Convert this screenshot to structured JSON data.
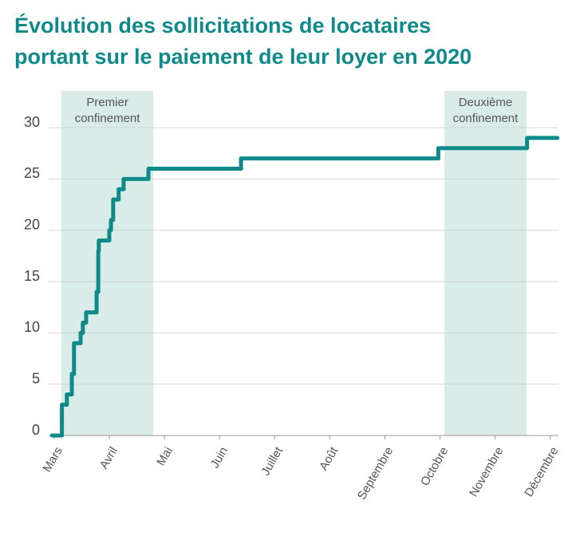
{
  "chart_data": {
    "type": "line",
    "title": [
      "Évolution des sollicitations de locataires",
      "portant sur le paiement de leur loyer en 2020"
    ],
    "step": "post",
    "xlim": [
      -0.1,
      9.15
    ],
    "xticks": [
      {
        "value": 0,
        "label": "Mars"
      },
      {
        "value": 1,
        "label": "Avril"
      },
      {
        "value": 2,
        "label": "Mai"
      },
      {
        "value": 3,
        "label": "Juin"
      },
      {
        "value": 4,
        "label": "Juillet"
      },
      {
        "value": 5,
        "label": "Août"
      },
      {
        "value": 6,
        "label": "Septembre"
      },
      {
        "value": 7,
        "label": "Octobre"
      },
      {
        "value": 8,
        "label": "Novembre"
      },
      {
        "value": 9,
        "label": "Décembre"
      }
    ],
    "ylim": [
      0,
      30
    ],
    "yticks": [
      0,
      5,
      10,
      15,
      20,
      25,
      30
    ],
    "grid": true,
    "shaded": [
      {
        "label": [
          "Premier",
          "confinement"
        ],
        "x": [
          0.13,
          1.8
        ],
        "color": "#d9ece7"
      },
      {
        "label": [
          "Deuxième",
          "confinement"
        ],
        "x": [
          7.08,
          8.57
        ],
        "color": "#d9ece7"
      }
    ],
    "series": [
      {
        "color": "#0f8a8a",
        "x": [
          -0.04,
          0.14,
          0.23,
          0.32,
          0.36,
          0.48,
          0.52,
          0.58,
          0.77,
          0.8,
          0.81,
          1.0,
          1.03,
          1.07,
          1.17,
          1.26,
          1.71,
          3.39,
          6.97,
          8.58,
          9.13
        ],
        "values": [
          0,
          3,
          4,
          6,
          9,
          10,
          11,
          12,
          14,
          18,
          19,
          20,
          21,
          23,
          24,
          25,
          26,
          27,
          28,
          29,
          29
        ]
      }
    ]
  }
}
